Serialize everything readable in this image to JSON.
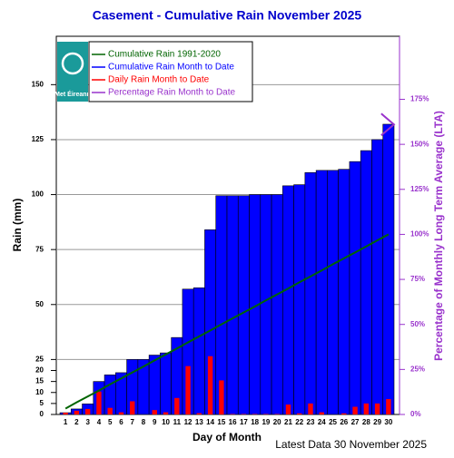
{
  "chart_data": {
    "type": "bar",
    "title": "Casement - Cumulative Rain November   2025",
    "y_label": "Rain (mm)",
    "y2_label": "Percentage  of Monthly Long Term Average (LTA)",
    "x_label": "Day of Month",
    "footer": "Latest Data 30 November 2025",
    "logo_text": "Met Éireann",
    "categories": [
      1,
      2,
      3,
      4,
      5,
      6,
      7,
      8,
      9,
      10,
      11,
      12,
      13,
      14,
      15,
      16,
      17,
      18,
      19,
      20,
      21,
      22,
      23,
      24,
      25,
      26,
      27,
      28,
      29,
      30
    ],
    "series": [
      {
        "name": "Cumulative Rain 1991-2020",
        "color": "#006400",
        "mark": "line",
        "values": [
          2.7,
          5.5,
          8.2,
          10.9,
          13.7,
          16.4,
          19.1,
          21.8,
          24.6,
          27.3,
          30.0,
          32.8,
          35.5,
          38.2,
          41.0,
          43.7,
          46.4,
          49.1,
          51.9,
          54.6,
          57.3,
          60.1,
          62.8,
          65.5,
          68.3,
          71.0,
          73.7,
          76.4,
          79.2,
          81.9
        ]
      },
      {
        "name": "Cumulative Rain Month to Date",
        "color": "#0000ff",
        "mark": "bar",
        "values": [
          0.8,
          2.5,
          4.8,
          15,
          18,
          19,
          25,
          25,
          27,
          28,
          35,
          57,
          57.6,
          84,
          99.5,
          99.5,
          99.5,
          100,
          100,
          100,
          104,
          104.5,
          110,
          111,
          111,
          111.5,
          115,
          120,
          125,
          132
        ]
      },
      {
        "name": "Daily Rain Month to Date",
        "color": "#ff0000",
        "mark": "narrow-bar",
        "values": [
          0.8,
          1.7,
          2.5,
          10.4,
          3,
          1,
          6,
          0,
          2,
          1,
          7.5,
          22,
          0.6,
          26.5,
          15.5,
          0.2,
          0.2,
          0.2,
          0.2,
          0.2,
          4.5,
          0.5,
          5,
          1,
          0,
          0.5,
          3.5,
          5,
          5,
          7
        ]
      },
      {
        "name": "Percentage Rain Month to Date",
        "color": "#9932cc",
        "mark": "chevron",
        "axis": "y2",
        "values": [
          null,
          null,
          null,
          null,
          null,
          null,
          null,
          null,
          null,
          null,
          null,
          null,
          null,
          null,
          null,
          null,
          null,
          null,
          null,
          null,
          null,
          null,
          null,
          null,
          null,
          null,
          null,
          null,
          null,
          161
        ]
      }
    ],
    "ylim": [
      0,
      172
    ],
    "yticks": [
      0,
      5,
      10,
      15,
      20,
      25,
      50,
      75,
      100,
      125,
      150
    ],
    "y2lim": [
      0,
      210
    ],
    "y2ticks": [
      {
        "value": 0,
        "label": "0%"
      },
      {
        "value": 25,
        "label": "25%"
      },
      {
        "value": 50,
        "label": "50%"
      },
      {
        "value": 75,
        "label": "75%"
      },
      {
        "value": 100,
        "label": "100%"
      },
      {
        "value": 125,
        "label": "125%"
      },
      {
        "value": 150,
        "label": "150%"
      },
      {
        "value": 175,
        "label": "175%"
      }
    ],
    "grid": true,
    "legend": "upper left"
  }
}
